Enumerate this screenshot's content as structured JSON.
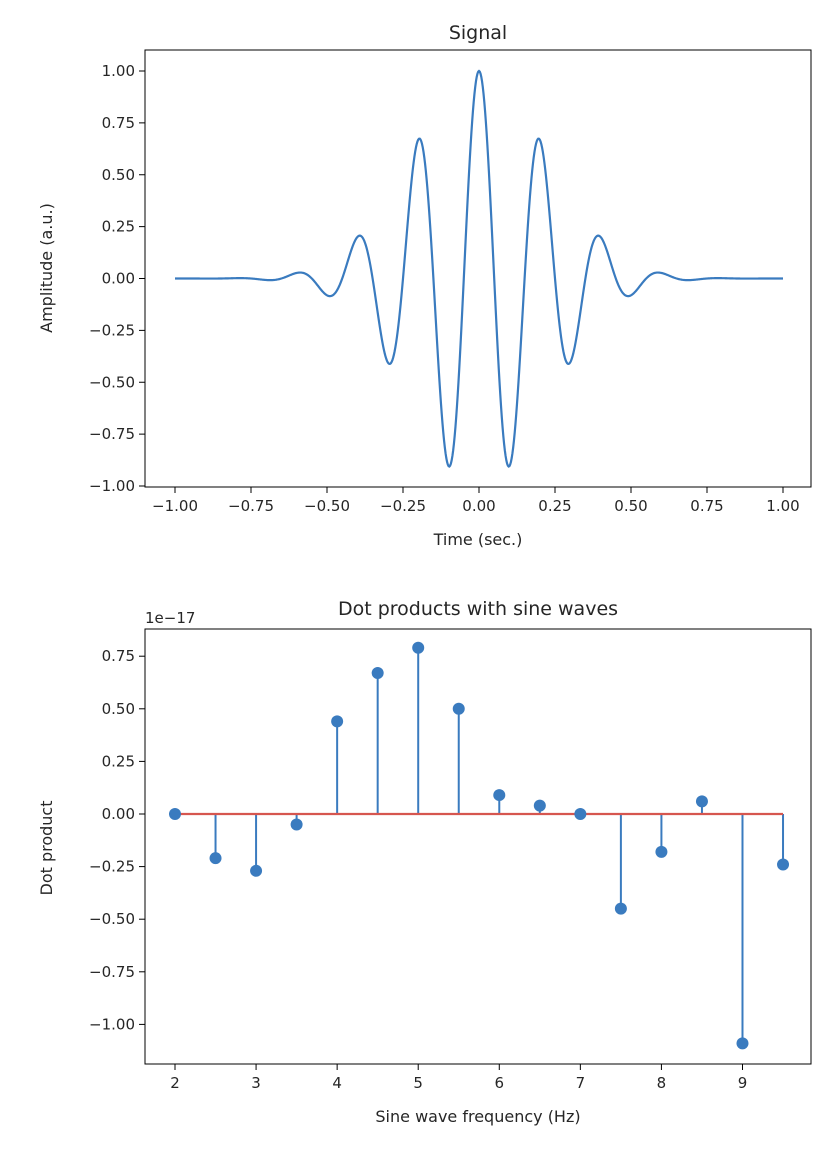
{
  "chart_data": [
    {
      "type": "line",
      "title": "Signal",
      "xlabel": "Time (sec.)",
      "ylabel": "Amplitude (a.u.)",
      "xlim": [
        -1.0,
        1.0
      ],
      "ylim": [
        -1.0,
        1.0
      ],
      "xticks": [
        "−1.00",
        "−0.75",
        "−0.50",
        "−0.25",
        "0.00",
        "0.25",
        "0.50",
        "0.75",
        "1.00"
      ],
      "xtick_values": [
        -1.0,
        -0.75,
        -0.5,
        -0.25,
        0.0,
        0.25,
        0.5,
        0.75,
        1.0
      ],
      "yticks": [
        "−1.00",
        "−0.75",
        "−0.50",
        "−0.25",
        "0.00",
        "0.25",
        "0.50",
        "0.75",
        "1.00"
      ],
      "ytick_values": [
        -1.0,
        -0.75,
        -0.5,
        -0.25,
        0.0,
        0.25,
        0.5,
        0.75,
        1.0
      ],
      "series_color": "#3a7bbf",
      "x": [
        -1.0,
        -0.7,
        -0.6,
        -0.5,
        -0.4,
        -0.3,
        -0.2,
        -0.1,
        0.0,
        0.1,
        0.2,
        0.3,
        0.4,
        0.5,
        0.6,
        0.7,
        1.0
      ],
      "y": [
        0.0,
        -0.01,
        0.03,
        -0.08,
        0.21,
        -0.41,
        0.68,
        -0.9,
        1.0,
        -0.9,
        0.68,
        -0.41,
        0.21,
        -0.08,
        0.03,
        -0.01,
        0.0
      ]
    },
    {
      "type": "stem",
      "title": "Dot products with sine waves",
      "xlabel": "Sine wave frequency (Hz)",
      "ylabel": "Dot product",
      "offset_text": "1e−17",
      "xlim": [
        1.65,
        9.85
      ],
      "ylim": [
        -1.19,
        0.88
      ],
      "xticks": [
        "2",
        "3",
        "4",
        "5",
        "6",
        "7",
        "8",
        "9"
      ],
      "xtick_values": [
        2,
        3,
        4,
        5,
        6,
        7,
        8,
        9
      ],
      "yticks": [
        "−1.00",
        "−0.75",
        "−0.50",
        "−0.25",
        "0.00",
        "0.25",
        "0.50",
        "0.75"
      ],
      "ytick_values": [
        -1.0,
        -0.75,
        -0.5,
        -0.25,
        0.0,
        0.25,
        0.5,
        0.75
      ],
      "stem_color": "#3a7bbf",
      "baseline_color": "#d6564f",
      "x": [
        2.0,
        2.5,
        3.0,
        3.5,
        4.0,
        4.5,
        5.0,
        5.5,
        6.0,
        6.5,
        7.0,
        7.5,
        8.0,
        8.5,
        9.0,
        9.5
      ],
      "values": [
        0.0,
        -0.21,
        -0.27,
        -0.05,
        0.44,
        0.67,
        0.79,
        0.5,
        0.09,
        0.04,
        0.0,
        -0.45,
        -0.18,
        0.06,
        -1.09,
        -0.24
      ]
    }
  ]
}
